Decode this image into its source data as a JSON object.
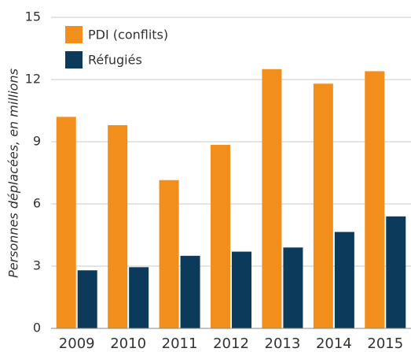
{
  "chart_data": {
    "type": "bar",
    "ylabel": "Personnes déplacées, en millions",
    "categories": [
      "2009",
      "2010",
      "2011",
      "2012",
      "2013",
      "2014",
      "2015"
    ],
    "series": [
      {
        "name": "PDI (conflits)",
        "color": "#f28e1c",
        "values": [
          10.2,
          9.8,
          7.15,
          8.85,
          12.5,
          11.8,
          12.4
        ]
      },
      {
        "name": "Réfugiés",
        "color": "#0b3a5a",
        "values": [
          2.8,
          2.95,
          3.5,
          3.7,
          3.9,
          4.65,
          5.4
        ]
      }
    ],
    "ylim": [
      0,
      15
    ],
    "yticks": [
      0,
      3,
      6,
      9,
      12,
      15
    ],
    "grid": true,
    "legend": "upper left"
  }
}
